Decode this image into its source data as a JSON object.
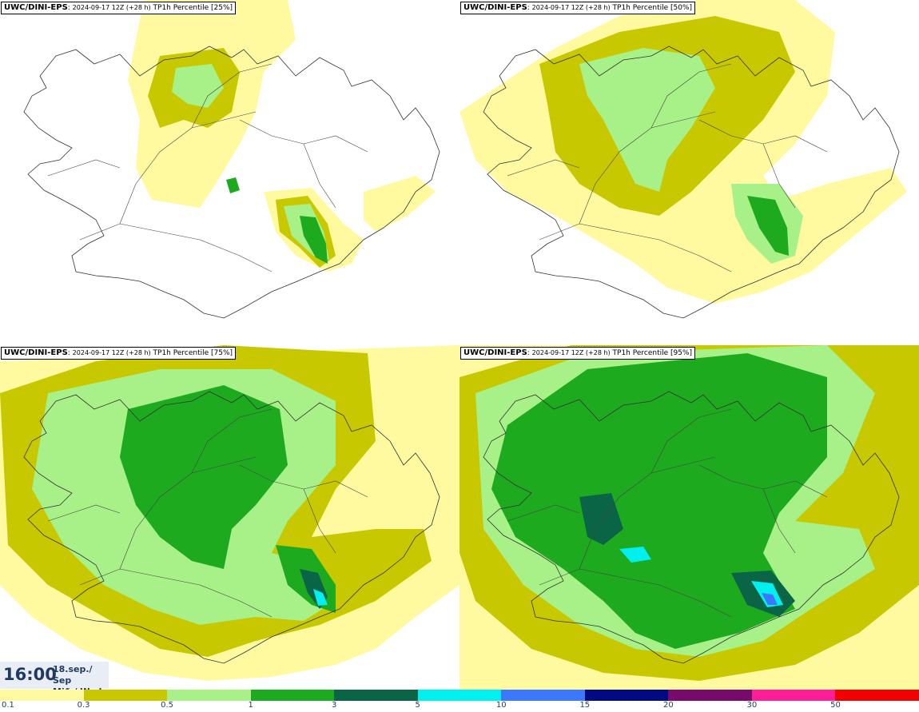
{
  "panels": [
    {
      "model": "UWC/DINI-EPS",
      "run": "2024-09-17 12Z (+28 h)",
      "field": "TP1h Percentile [25%]",
      "level": 0
    },
    {
      "model": "UWC/DINI-EPS",
      "run": "2024-09-17 12Z (+28 h)",
      "field": "TP1h Percentile [50%]",
      "level": 1
    },
    {
      "model": "UWC/DINI-EPS",
      "run": "2024-09-17 12Z (+28 h)",
      "field": "TP1h Percentile [75%]",
      "level": 2
    },
    {
      "model": "UWC/DINI-EPS",
      "run": "2024-09-17 12Z (+28 h)",
      "field": "TP1h Percentile [95%]",
      "level": 3
    }
  ],
  "timebox": {
    "time": "16:00",
    "date_line1": "18.sep./ Sep",
    "date_line2": "Mið./ Wed"
  },
  "legend": {
    "colors": [
      "#fffaa0",
      "#c8c800",
      "#a8f088",
      "#1eaa1e",
      "#0a6446",
      "#00f0f0",
      "#3c78ff",
      "#000a82",
      "#780a6e",
      "#ff1e96",
      "#f00000"
    ],
    "ticks": [
      "0.1",
      "0.3",
      "0.5",
      "1",
      "3",
      "5",
      "10",
      "15",
      "20",
      "30",
      "50"
    ]
  }
}
